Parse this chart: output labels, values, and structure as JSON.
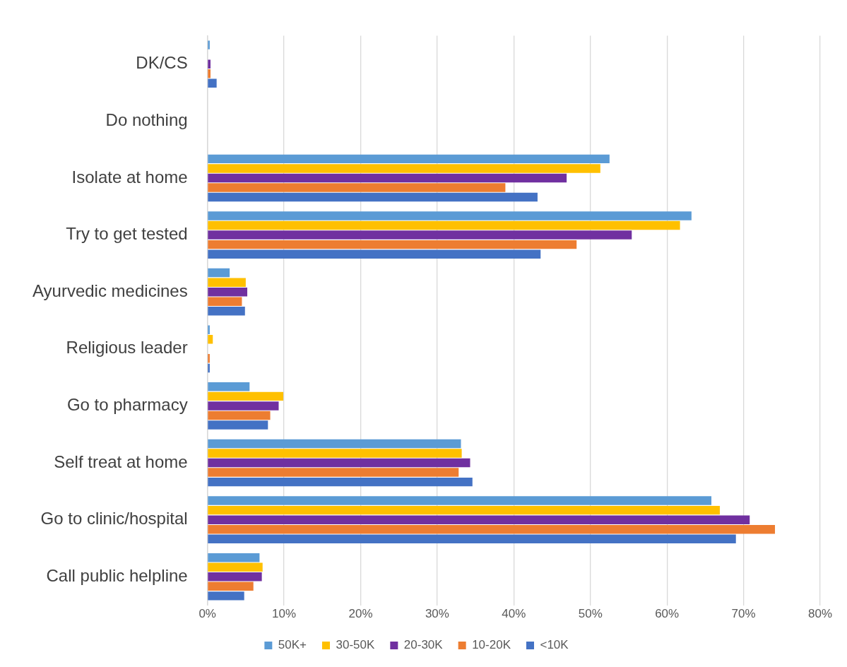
{
  "chart_data": {
    "type": "bar",
    "orientation": "horizontal",
    "categories": [
      "DK/CS",
      "Do nothing",
      "Isolate at home",
      "Try to get tested",
      "Ayurvedic medicines",
      "Religious leader",
      "Go to pharmacy",
      "Self treat at home",
      "Go to clinic/hospital",
      "Call public helpline"
    ],
    "series": [
      {
        "name": "50K+",
        "color": "#5b9bd5",
        "values": [
          0.3,
          0,
          52.5,
          63.2,
          2.9,
          0.3,
          5.5,
          33.1,
          65.8,
          6.8
        ]
      },
      {
        "name": "30-50K",
        "color": "#ffc000",
        "values": [
          0,
          0,
          51.3,
          61.7,
          5.0,
          0.7,
          9.9,
          33.2,
          66.9,
          7.2
        ]
      },
      {
        "name": "20-30K",
        "color": "#7030a0",
        "values": [
          0.4,
          0,
          46.9,
          55.4,
          5.2,
          0,
          9.3,
          34.3,
          70.8,
          7.1
        ]
      },
      {
        "name": "10-20K",
        "color": "#ed7d31",
        "values": [
          0.4,
          0,
          38.9,
          48.2,
          4.5,
          0.3,
          8.2,
          32.8,
          74.1,
          6.0
        ]
      },
      {
        "name": "<10K",
        "color": "#4472c4",
        "values": [
          1.2,
          0,
          43.1,
          43.5,
          4.9,
          0.3,
          7.9,
          34.6,
          69.0,
          4.8
        ]
      }
    ],
    "xlim": [
      0,
      80
    ],
    "xticks": [
      {
        "value": 0,
        "label": "0%"
      },
      {
        "value": 10,
        "label": "10%"
      },
      {
        "value": 20,
        "label": "20%"
      },
      {
        "value": 30,
        "label": "30%"
      },
      {
        "value": 40,
        "label": "40%"
      },
      {
        "value": 50,
        "label": "50%"
      },
      {
        "value": 60,
        "label": "60%"
      },
      {
        "value": 70,
        "label": "70%"
      },
      {
        "value": 80,
        "label": "80%"
      }
    ],
    "grid": "x",
    "legend": "bottom"
  }
}
